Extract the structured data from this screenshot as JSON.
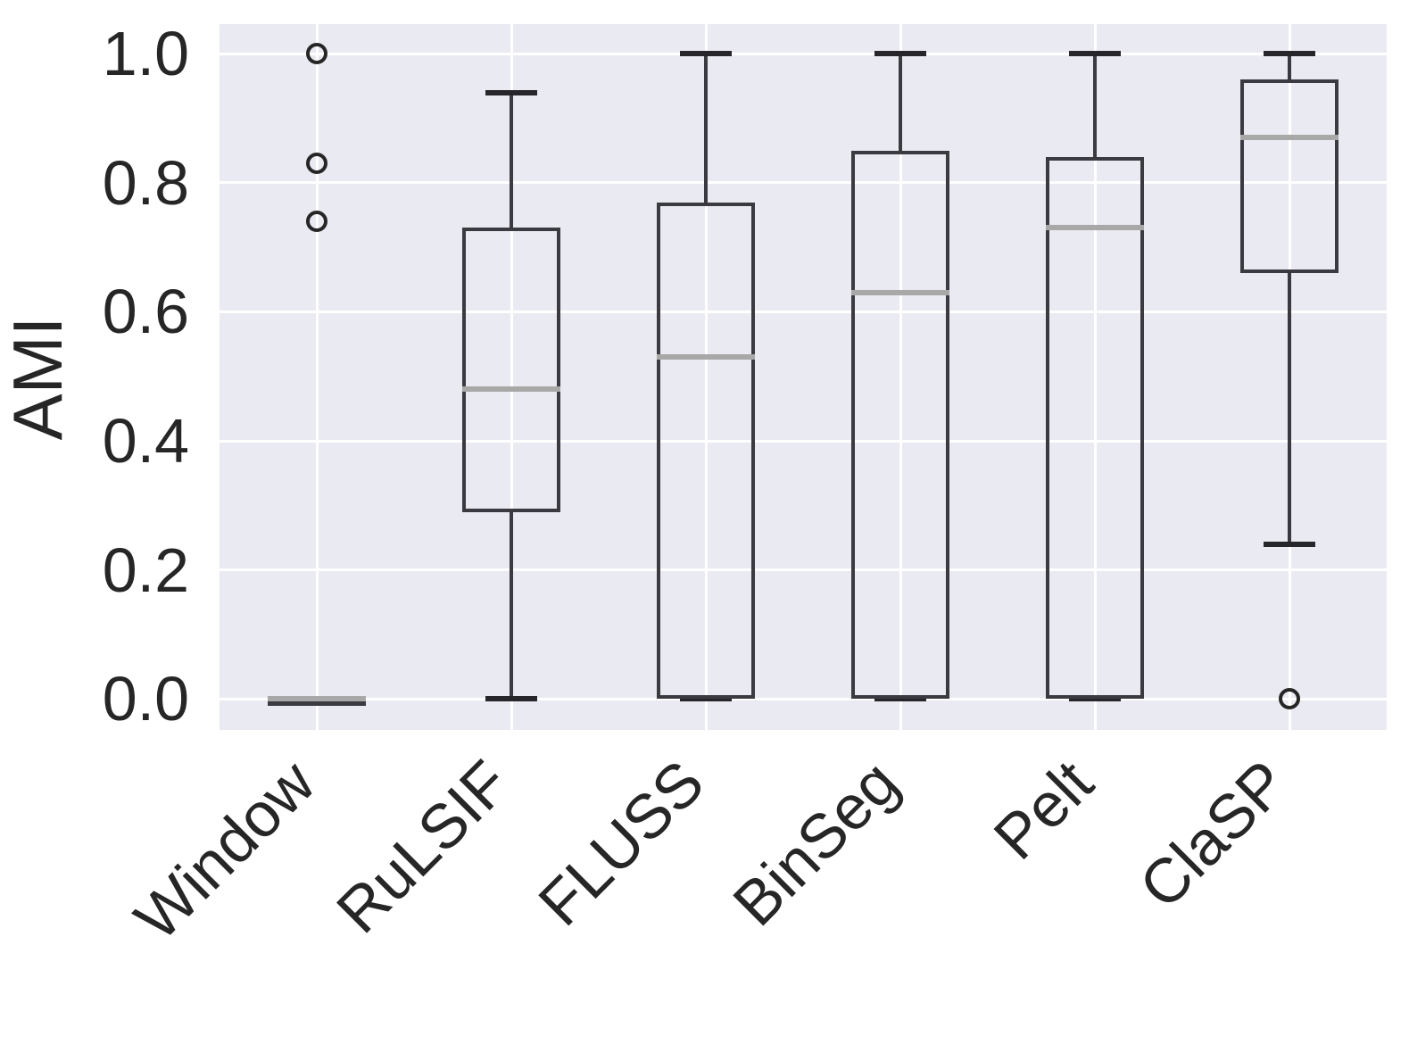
{
  "chart": {
    "plot_bg": "#eaeaf2",
    "grid_color": "#ffffff",
    "box_color": "#3a3a40",
    "cap_color": "#26262b",
    "median_color": "#a8a8a8",
    "flier_color": "#262626",
    "text_color": "#262626"
  },
  "chart_data": {
    "type": "boxplot",
    "title": "",
    "xlabel": "",
    "ylabel": "AMI",
    "categories": [
      "Window",
      "RuLSIF",
      "FLUSS",
      "BinSeg",
      "Pelt",
      "ClaSP"
    ],
    "ytick_labels": [
      "0.0",
      "0.2",
      "0.4",
      "0.6",
      "0.8",
      "1.0"
    ],
    "yticks": [
      0.0,
      0.2,
      0.4,
      0.6,
      0.8,
      1.0
    ],
    "ylim": [
      -0.048,
      1.046
    ],
    "grid": true,
    "legend": false,
    "series": [
      {
        "name": "Window",
        "whisker_low": 0.0,
        "q1": 0.0,
        "median": 0.0,
        "q3": 0.0,
        "whisker_high": 0.0,
        "fliers": [
          0.74,
          0.83,
          1.0
        ]
      },
      {
        "name": "RuLSIF",
        "whisker_low": 0.0,
        "q1": 0.29,
        "median": 0.48,
        "q3": 0.73,
        "whisker_high": 0.94,
        "fliers": []
      },
      {
        "name": "FLUSS",
        "whisker_low": 0.0,
        "q1": 0.0,
        "median": 0.53,
        "q3": 0.77,
        "whisker_high": 1.0,
        "fliers": []
      },
      {
        "name": "BinSeg",
        "whisker_low": 0.0,
        "q1": 0.0,
        "median": 0.63,
        "q3": 0.85,
        "whisker_high": 1.0,
        "fliers": []
      },
      {
        "name": "Pelt",
        "whisker_low": 0.0,
        "q1": 0.0,
        "median": 0.73,
        "q3": 0.84,
        "whisker_high": 1.0,
        "fliers": []
      },
      {
        "name": "ClaSP",
        "whisker_low": 0.24,
        "q1": 0.66,
        "median": 0.87,
        "q3": 0.96,
        "whisker_high": 1.0,
        "fliers": [
          0.0
        ]
      }
    ]
  }
}
